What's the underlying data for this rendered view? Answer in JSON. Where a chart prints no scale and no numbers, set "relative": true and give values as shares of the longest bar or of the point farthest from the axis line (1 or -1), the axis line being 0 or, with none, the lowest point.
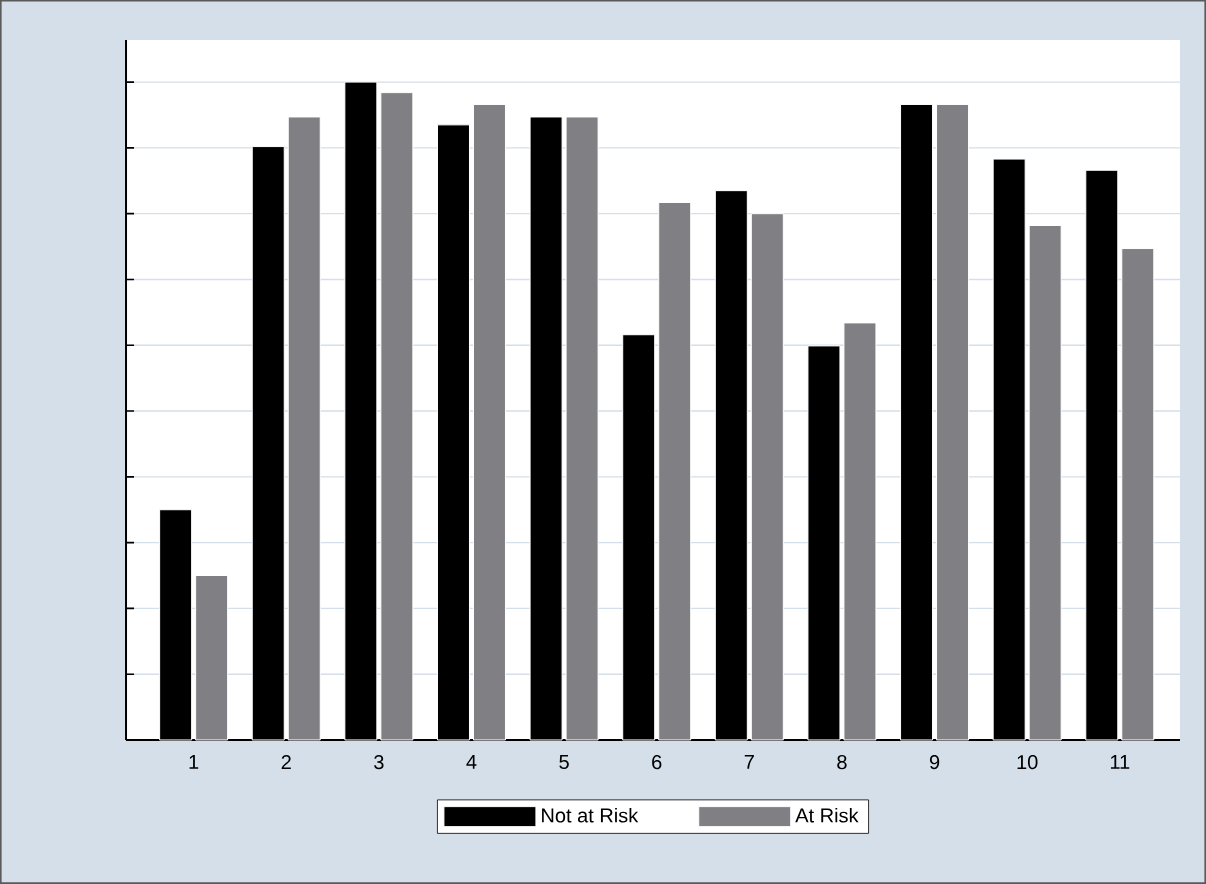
{
  "chart_data": {
    "type": "bar",
    "relative": true,
    "grid": "y",
    "legend": "bottom",
    "categories": [
      "1",
      "2",
      "3",
      "4",
      "5",
      "6",
      "7",
      "8",
      "9",
      "10",
      "11"
    ],
    "series": [
      {
        "name": "Not at Risk",
        "color": "#000000",
        "values": [
          0.35,
          0.902,
          1.0,
          0.935,
          0.947,
          0.616,
          0.835,
          0.599,
          0.966,
          0.883,
          0.866
        ]
      },
      {
        "name": "At Risk",
        "color": "#7f7f84",
        "values": [
          0.25,
          0.947,
          0.984,
          0.966,
          0.947,
          0.817,
          0.8,
          0.634,
          0.966,
          0.782,
          0.747
        ]
      }
    ]
  }
}
